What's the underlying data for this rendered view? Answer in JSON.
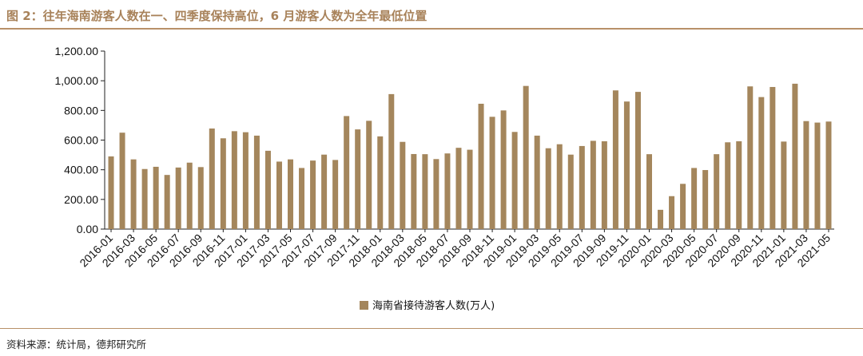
{
  "header": {
    "title": "图 2：往年海南游客人数在一、四季度保持高位，6 月游客人数为全年最低位置"
  },
  "footer": {
    "source": "资料来源：统计局，德邦研究所"
  },
  "colors": {
    "bar": "#a4865c",
    "accent": "#b89068",
    "title": "#a8825a"
  },
  "chart_data": {
    "type": "bar",
    "title": "",
    "xlabel": "",
    "ylabel": "",
    "ylim": [
      0,
      1200
    ],
    "yticks": [
      "0.00",
      "200.00",
      "400.00",
      "600.00",
      "800.00",
      "1,000.00",
      "1,200.00"
    ],
    "grid": false,
    "legend_position": "bottom",
    "categories": [
      "2016-01",
      "2016-02",
      "2016-03",
      "2016-04",
      "2016-05",
      "2016-06",
      "2016-07",
      "2016-08",
      "2016-09",
      "2016-10",
      "2016-11",
      "2016-12",
      "2017-01",
      "2017-02",
      "2017-03",
      "2017-04",
      "2017-05",
      "2017-06",
      "2017-07",
      "2017-08",
      "2017-09",
      "2017-10",
      "2017-11",
      "2017-12",
      "2018-01",
      "2018-02",
      "2018-03",
      "2018-04",
      "2018-05",
      "2018-06",
      "2018-07",
      "2018-08",
      "2018-09",
      "2018-10",
      "2018-11",
      "2018-12",
      "2019-01",
      "2019-02",
      "2019-03",
      "2019-04",
      "2019-05",
      "2019-06",
      "2019-07",
      "2019-08",
      "2019-09",
      "2019-10",
      "2019-11",
      "2019-12",
      "2020-01",
      "2020-02",
      "2020-03",
      "2020-04",
      "2020-05",
      "2020-06",
      "2020-07",
      "2020-08",
      "2020-09",
      "2020-10",
      "2020-11",
      "2020-12",
      "2021-01",
      "2021-02",
      "2021-03",
      "2021-04",
      "2021-05"
    ],
    "xtick_labels": [
      "2016-01",
      "2016-03",
      "2016-05",
      "2016-07",
      "2016-09",
      "2016-11",
      "2017-01",
      "2017-03",
      "2017-05",
      "2017-07",
      "2017-09",
      "2017-11",
      "2018-01",
      "2018-03",
      "2018-05",
      "2018-07",
      "2018-09",
      "2018-11",
      "2019-01",
      "2019-03",
      "2019-05",
      "2019-07",
      "2019-09",
      "2019-11",
      "2020-01",
      "2020-03",
      "2020-05",
      "2020-07",
      "2020-09",
      "2020-11",
      "2021-01",
      "2021-03",
      "2021-05"
    ],
    "series": [
      {
        "name": "海南省接待游客人数(万人)",
        "values": [
          490,
          650,
          470,
          405,
          420,
          365,
          415,
          448,
          418,
          678,
          612,
          660,
          653,
          630,
          528,
          455,
          470,
          412,
          462,
          502,
          466,
          762,
          672,
          730,
          625,
          910,
          588,
          506,
          505,
          472,
          510,
          548,
          535,
          845,
          757,
          800,
          655,
          965,
          630,
          545,
          572,
          502,
          560,
          595,
          592,
          935,
          860,
          925,
          505,
          130,
          222,
          305,
          412,
          398,
          505,
          585,
          592,
          962,
          890,
          958,
          590,
          980,
          728,
          718,
          725
        ]
      }
    ]
  }
}
